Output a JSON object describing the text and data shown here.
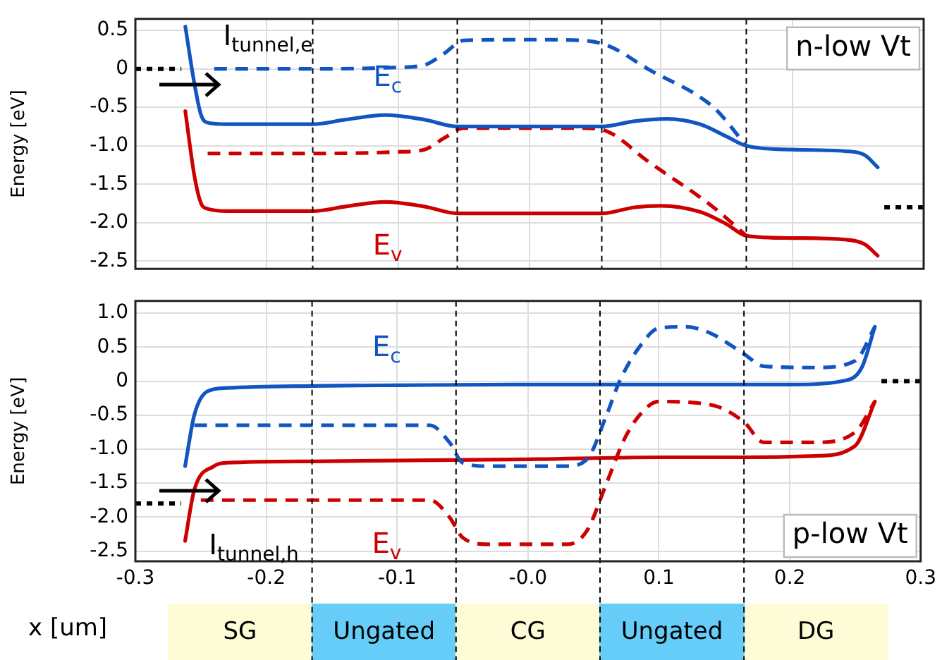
{
  "chart_data": [
    {
      "type": "line",
      "ylabel": "Energy [eV]",
      "xlim": [
        -0.3,
        0.3
      ],
      "xticks": [
        -0.3,
        -0.2,
        -0.1,
        0,
        0.1,
        0.2,
        0.3
      ],
      "ylim": [
        -2.6,
        0.65
      ],
      "yticks": [
        0.5,
        0,
        -0.5,
        {
          "value": -1,
          "label": "-1.0"
        },
        -1.5,
        {
          "value": -2,
          "label": "-2.0"
        },
        -2.5
      ],
      "tick_labels": "y",
      "grid": true,
      "legend": false,
      "marker": "none",
      "series": [
        {
          "name": "E$_{c}$",
          "color": "#1155c0",
          "line_style": "solid",
          "x": [
            -0.262,
            -0.255,
            -0.25,
            -0.245,
            -0.23,
            -0.165,
            -0.14,
            -0.11,
            -0.08,
            -0.055,
            0,
            0.055,
            0.08,
            0.105,
            0.13,
            0.15,
            0.165,
            0.2,
            0.24,
            0.255,
            0.265
          ],
          "values": [
            0.55,
            -0.2,
            -0.6,
            -0.7,
            -0.72,
            -0.72,
            -0.66,
            -0.6,
            -0.66,
            -0.75,
            -0.75,
            -0.75,
            -0.68,
            -0.65,
            -0.72,
            -0.88,
            -1.0,
            -1.05,
            -1.07,
            -1.12,
            -1.28
          ]
        },
        {
          "color": "#1155c0",
          "line_style": "dashed",
          "x": [
            -0.24,
            -0.165,
            -0.1,
            -0.08,
            -0.065,
            -0.05,
            0,
            0.04,
            0.06,
            0.09,
            0.14,
            0.165
          ],
          "values": [
            0,
            0,
            0.02,
            0.05,
            0.2,
            0.37,
            0.38,
            0.37,
            0.3,
            0,
            -0.5,
            -1.0
          ]
        },
        {
          "name": "E$_{v}$",
          "color": "#cc0000",
          "line_style": "solid",
          "x": [
            -0.262,
            -0.255,
            -0.25,
            -0.245,
            -0.23,
            -0.165,
            -0.14,
            -0.11,
            -0.08,
            -0.055,
            0,
            0.055,
            0.08,
            0.1,
            0.13,
            0.15,
            0.165,
            0.2,
            0.24,
            0.255,
            0.265
          ],
          "values": [
            -0.55,
            -1.4,
            -1.75,
            -1.82,
            -1.85,
            -1.85,
            -1.79,
            -1.73,
            -1.79,
            -1.88,
            -1.88,
            -1.88,
            -1.8,
            -1.78,
            -1.86,
            -2.02,
            -2.17,
            -2.2,
            -2.22,
            -2.28,
            -2.43
          ]
        },
        {
          "color": "#cc0000",
          "line_style": "dashed",
          "x": [
            -0.245,
            -0.165,
            -0.1,
            -0.08,
            -0.065,
            -0.05,
            0,
            0.04,
            0.06,
            0.09,
            0.14,
            0.165
          ],
          "values": [
            -1.1,
            -1.1,
            -1.08,
            -1.05,
            -0.9,
            -0.77,
            -0.77,
            -0.77,
            -0.82,
            -1.2,
            -1.8,
            -2.17
          ]
        },
        {
          "color": "#000000",
          "line_style": "dotted",
          "x": [
            -0.3,
            -0.265
          ],
          "values": [
            0,
            0
          ]
        },
        {
          "color": "#000000",
          "line_style": "dotted",
          "x": [
            0.27,
            0.3
          ],
          "values": [
            -1.8,
            -1.8
          ]
        }
      ],
      "ref_lines": [
        {
          "axis": "x",
          "value": -0.165,
          "color": "#000000",
          "line_style": "dashed"
        },
        {
          "axis": "x",
          "value": -0.055,
          "color": "#000000",
          "line_style": "dashed"
        },
        {
          "axis": "x",
          "value": 0.055,
          "color": "#000000",
          "line_style": "dashed"
        },
        {
          "axis": "x",
          "value": 0.165,
          "color": "#000000",
          "line_style": "dashed"
        }
      ],
      "annotations": [
        "I$_{tunnel,e}$",
        "n-low Vt"
      ]
    },
    {
      "type": "line",
      "ylabel": "Energy [eV]",
      "xlabel": "x [um]",
      "xlim": [
        -0.3,
        0.3
      ],
      "xticks": [
        -0.3,
        -0.2,
        -0.1,
        {
          "value": 0,
          "label": "-0.0"
        },
        0.1,
        0.2,
        0.3
      ],
      "ylim": [
        -2.65,
        1.18
      ],
      "yticks": [
        {
          "value": 1,
          "label": "1.0"
        },
        0.5,
        0,
        -0.5,
        {
          "value": -1,
          "label": "-1.0"
        },
        -1.5,
        {
          "value": -2,
          "label": "-2.0"
        },
        -2.5
      ],
      "grid": true,
      "legend": false,
      "marker": "none",
      "series": [
        {
          "name": "E$_{c}$",
          "color": "#1155c0",
          "line_style": "solid",
          "x": [
            -0.262,
            -0.255,
            -0.245,
            -0.23,
            -0.165,
            -0.1,
            0,
            0.1,
            0.2,
            0.24,
            0.255,
            0.265
          ],
          "values": [
            -1.25,
            -0.5,
            -0.15,
            -0.1,
            -0.07,
            -0.06,
            -0.05,
            -0.05,
            -0.05,
            0,
            0.2,
            0.8
          ]
        },
        {
          "color": "#1155c0",
          "line_style": "dashed",
          "x": [
            -0.255,
            -0.2,
            -0.075,
            -0.06,
            -0.05,
            -0.03,
            0.029,
            0.045,
            0.06,
            0.07,
            0.085,
            0.1,
            0.12,
            0.14,
            0.165,
            0.18,
            0.22,
            0.25,
            0.265
          ],
          "values": [
            -0.65,
            -0.65,
            -0.65,
            -0.9,
            -1.2,
            -1.25,
            -1.25,
            -1.15,
            -0.5,
            0,
            0.5,
            0.78,
            0.8,
            0.7,
            0.4,
            0.22,
            0.2,
            0.3,
            0.8
          ]
        },
        {
          "name": "E$_{v}$",
          "color": "#cc0000",
          "line_style": "solid",
          "x": [
            -0.262,
            -0.255,
            -0.24,
            -0.23,
            -0.165,
            0,
            0.1,
            0.165,
            0.22,
            0.25,
            0.265
          ],
          "values": [
            -2.35,
            -1.6,
            -1.25,
            -1.2,
            -1.18,
            -1.15,
            -1.12,
            -1.12,
            -1.1,
            -0.95,
            -0.3
          ]
        },
        {
          "color": "#cc0000",
          "line_style": "dashed",
          "x": [
            -0.25,
            -0.075,
            -0.06,
            -0.05,
            -0.03,
            0.03,
            0.045,
            0.06,
            0.075,
            0.09,
            0.1,
            0.14,
            0.165,
            0.18,
            0.22,
            0.25,
            0.265
          ],
          "values": [
            -1.75,
            -1.75,
            -2.0,
            -2.3,
            -2.4,
            -2.4,
            -2.2,
            -1.5,
            -0.8,
            -0.4,
            -0.3,
            -0.35,
            -0.6,
            -0.9,
            -0.9,
            -0.75,
            -0.3
          ]
        },
        {
          "color": "#000000",
          "line_style": "dotted",
          "x": [
            -0.3,
            -0.265
          ],
          "values": [
            -1.8,
            -1.8
          ]
        },
        {
          "color": "#000000",
          "line_style": "dotted",
          "x": [
            0.27,
            0.3
          ],
          "values": [
            0,
            0
          ]
        }
      ],
      "ref_lines": [
        {
          "axis": "x",
          "value": -0.165,
          "color": "#000000",
          "line_style": "dashed"
        },
        {
          "axis": "x",
          "value": -0.055,
          "color": "#000000",
          "line_style": "dashed"
        },
        {
          "axis": "x",
          "value": 0.055,
          "color": "#000000",
          "line_style": "dashed"
        },
        {
          "axis": "x",
          "value": 0.165,
          "color": "#000000",
          "line_style": "dashed"
        }
      ],
      "annotations": [
        "I$_{tunnel,h}$",
        "p-low Vt",
        "SG",
        "Ungated",
        "CG",
        "Ungated",
        "DG"
      ]
    }
  ]
}
